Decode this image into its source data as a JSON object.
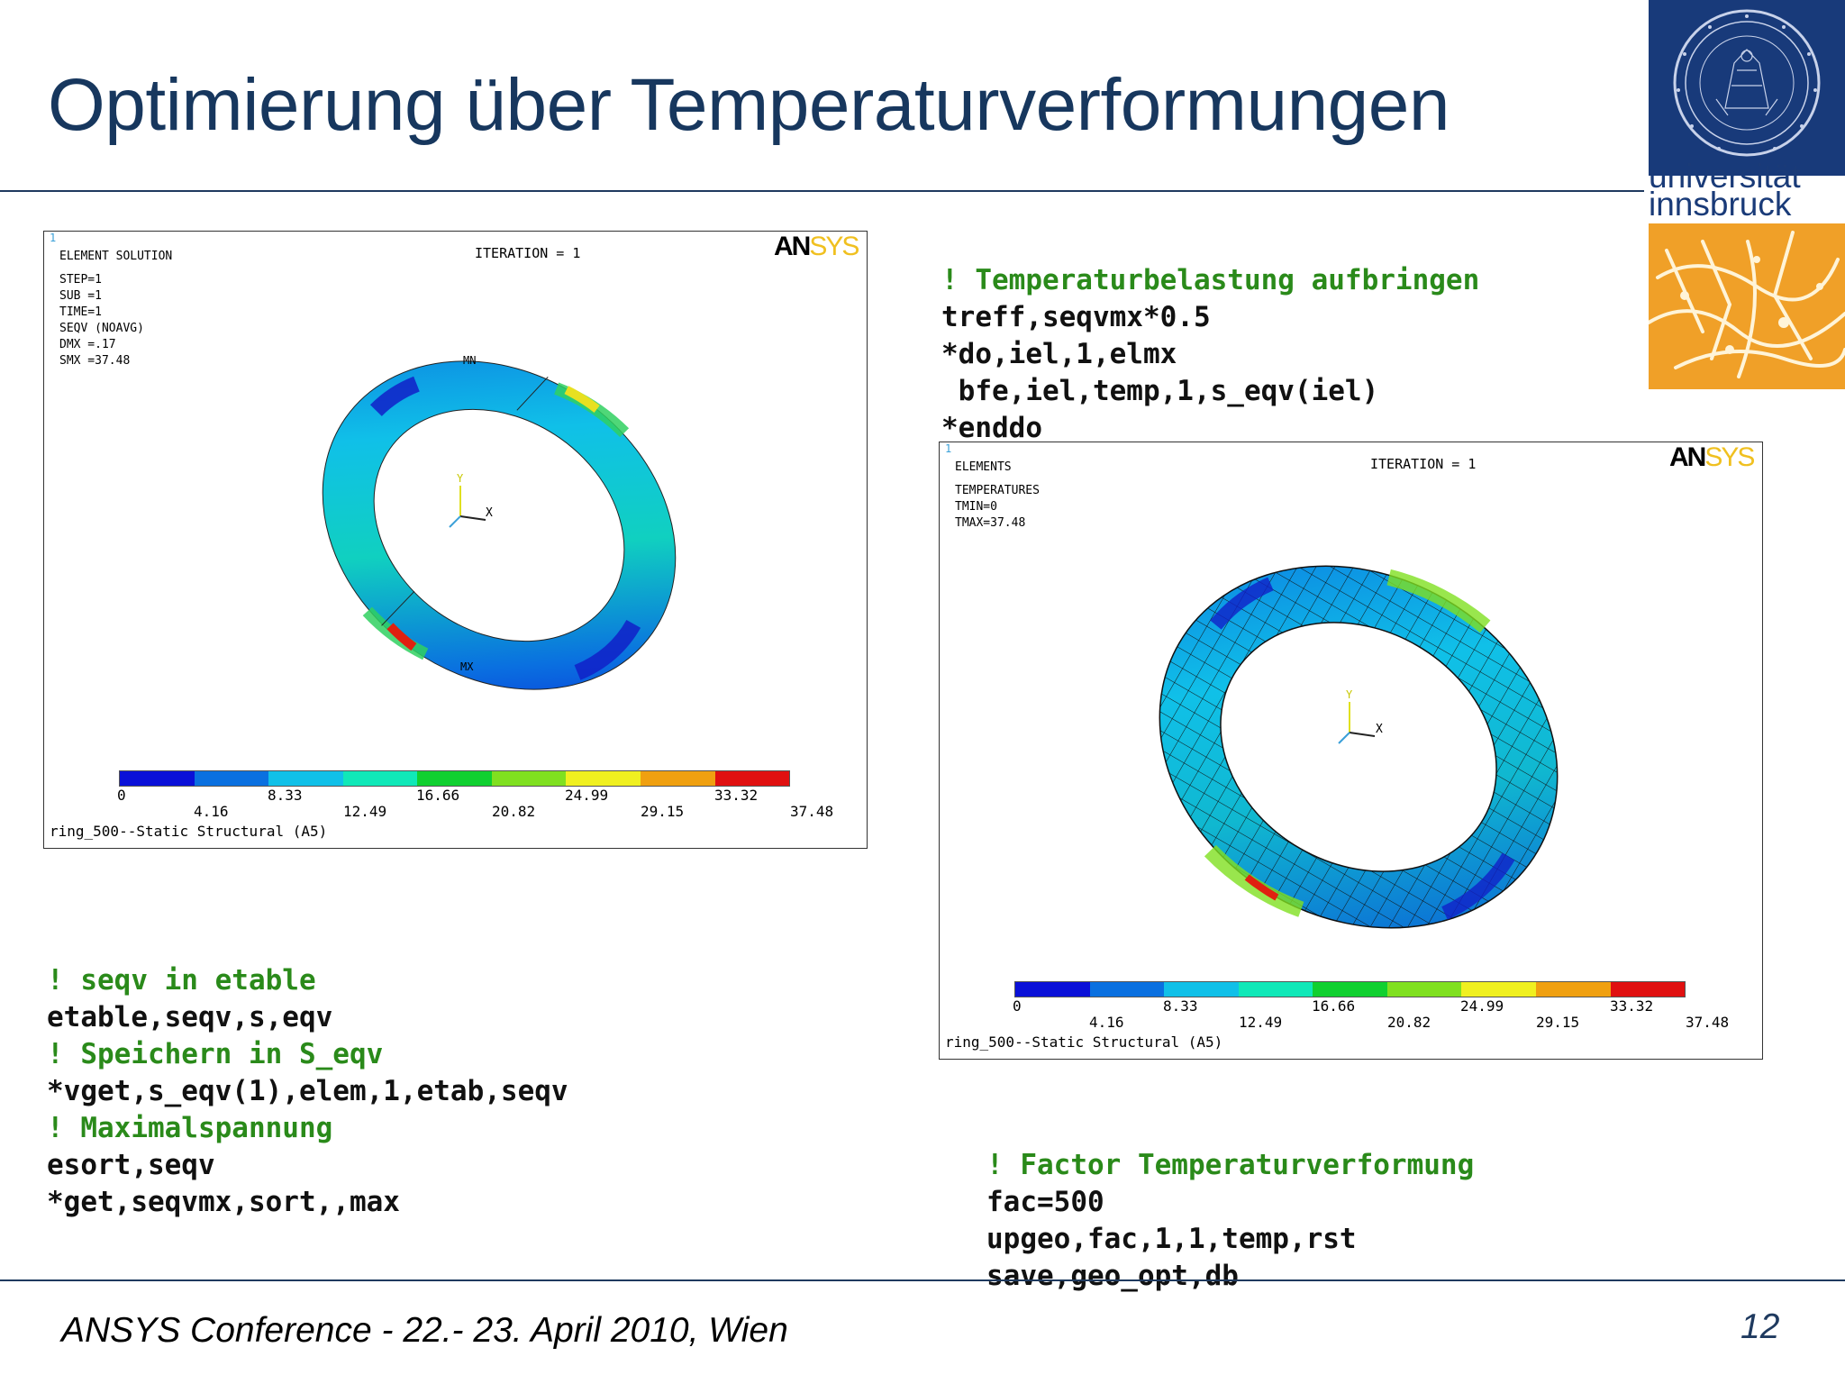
{
  "title": "Optimierung über Temperaturverformungen",
  "footer": {
    "conference": "ANSYS Conference  - 22.- 23. April 2010, Wien",
    "page_number": "12"
  },
  "logo": {
    "line1": "universität",
    "line2": "innsbruck",
    "seal_icon": "university-seal-icon",
    "colors": {
      "blue": "#183a7a",
      "orange": "#f0a028"
    }
  },
  "panel1": {
    "corner_number": "1",
    "header": "ELEMENT SOLUTION",
    "iteration": "ITERATION = 1",
    "ansys_an": "AN",
    "ansys_sys": "SYS",
    "info": [
      "STEP=1",
      "SUB =1",
      "TIME=1",
      "SEQV      (NOAVG)",
      "DMX =.17",
      "SMX =37.48"
    ],
    "mn_label": "MN",
    "mx_label": "MX",
    "axis_y": "Y",
    "axis_x": "X",
    "caption": "ring_500--Static Structural (A5)"
  },
  "panel2": {
    "corner_number": "1",
    "header": "ELEMENTS",
    "iteration": "ITERATION = 1",
    "ansys_an": "AN",
    "ansys_sys": "SYS",
    "info": [
      "TEMPERATURES",
      "TMIN=0",
      "TMAX=37.48"
    ],
    "axis_y": "Y",
    "axis_x": "X",
    "caption": "ring_500--Static Structural (A5)"
  },
  "colorbar": {
    "colors": [
      "#0a10d8",
      "#0a70e0",
      "#10c0e8",
      "#10e8b8",
      "#10d030",
      "#80e020",
      "#f0f020",
      "#f0a010",
      "#e01010"
    ],
    "upper_ticks": [
      "0",
      "8.33",
      "16.66",
      "24.99",
      "33.32"
    ],
    "lower_ticks": [
      "4.16",
      "12.49",
      "20.82",
      "29.15",
      "37.48"
    ]
  },
  "code_block_top_right": [
    {
      "comment": true,
      "text": "! Temperaturbelastung aufbringen"
    },
    {
      "comment": false,
      "text": "treff,seqvmx*0.5"
    },
    {
      "comment": false,
      "text": "*do,iel,1,elmx"
    },
    {
      "comment": false,
      "text": " bfe,iel,temp,1,s_eqv(iel)"
    },
    {
      "comment": false,
      "text": "*enddo"
    }
  ],
  "code_block_left": [
    {
      "comment": true,
      "text": "! seqv in etable"
    },
    {
      "comment": false,
      "text": "etable,seqv,s,eqv"
    },
    {
      "comment": true,
      "text": "! Speichern in S_eqv"
    },
    {
      "comment": false,
      "text": "*vget,s_eqv(1),elem,1,etab,seqv"
    },
    {
      "comment": true,
      "text": "! Maximalspannung"
    },
    {
      "comment": false,
      "text": "esort,seqv"
    },
    {
      "comment": false,
      "text": "*get,seqvmx,sort,,max"
    }
  ],
  "code_block_bottom_right": [
    {
      "comment": true,
      "text": "! Factor Temperaturverformung"
    },
    {
      "comment": false,
      "text": "fac=500"
    },
    {
      "comment": false,
      "text": "upgeo,fac,1,1,temp,rst"
    },
    {
      "comment": false,
      "text": "save,geo_opt,db"
    }
  ]
}
